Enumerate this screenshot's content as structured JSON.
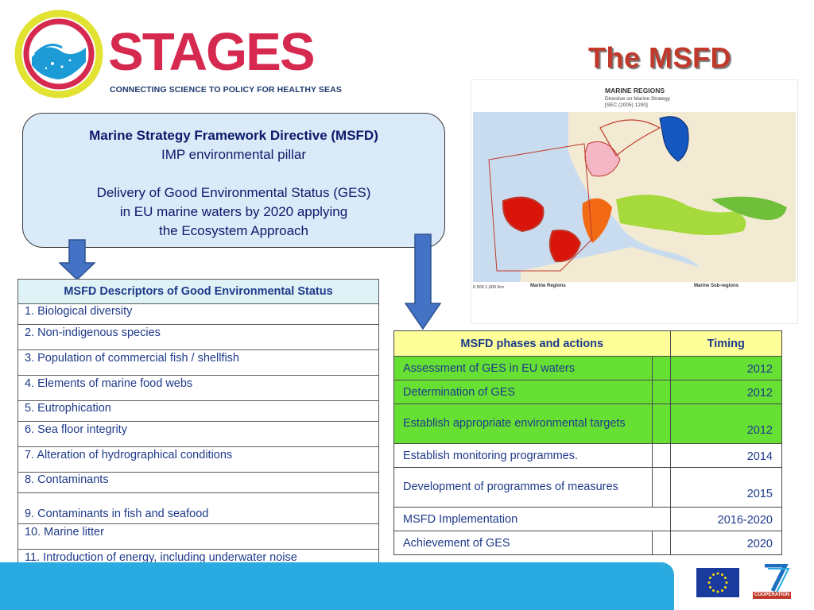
{
  "logo": {
    "word": "STAGES",
    "tagline": "CONNECTING SCIENCE TO POLICY FOR HEALTHY SEAS",
    "colors": {
      "ring_outer": "#e2e233",
      "ring_inner": "#d6294f",
      "wave": "#1d9bd6",
      "word": "#d6294f"
    }
  },
  "title": "The MSFD",
  "callout": {
    "heading": "Marine Strategy Framework Directive (MSFD)",
    "line1": "IMP environmental pillar",
    "line2": "Delivery of Good Environmental Status (GES)",
    "line3": "in EU marine waters by 2020 applying",
    "line4": "the Ecosystem Approach"
  },
  "map": {
    "title": "MARINE REGIONS",
    "subtitle1": "Directive on Marine Strategy",
    "subtitle2": "[SEC (2005) 1290]",
    "legend_regions": "Marine Regions",
    "legend_subregions": "Marine Sub-regions",
    "scale": "0    500    1,000 Km"
  },
  "descriptors": {
    "header": "MSFD Descriptors of Good Environmental Status",
    "items": [
      "1. Biological diversity",
      "2. Non-indigenous species",
      "3. Population of commercial fish / shellfish",
      "4. Elements of marine food webs",
      "5. Eutrophication",
      "6. Sea floor integrity",
      "7. Alteration of hydrographical conditions",
      "8. Contaminants",
      "9. Contaminants in fish and seafood",
      "10. Marine litter",
      "11. Introduction of energy, including underwater noise"
    ]
  },
  "phases": {
    "header_action": "MSFD phases and actions",
    "header_timing": "Timing",
    "rows": [
      {
        "action": "Assessment of GES in EU waters",
        "timing": "2012"
      },
      {
        "action": "Determination of GES",
        "timing": "2012"
      },
      {
        "action": "Establish appropriate environmental targets",
        "timing": "2012"
      },
      {
        "action": "Establish monitoring programmes.",
        "timing": "2014"
      },
      {
        "action": "Development of programmes of measures",
        "timing": "2015"
      },
      {
        "action": "MSFD Implementation",
        "timing": "2016-2020"
      },
      {
        "action": "Achievement of GES",
        "timing": "2020"
      }
    ]
  },
  "footer": {
    "fp7_label": "COOPERATION",
    "band_color": "#29abe2"
  }
}
